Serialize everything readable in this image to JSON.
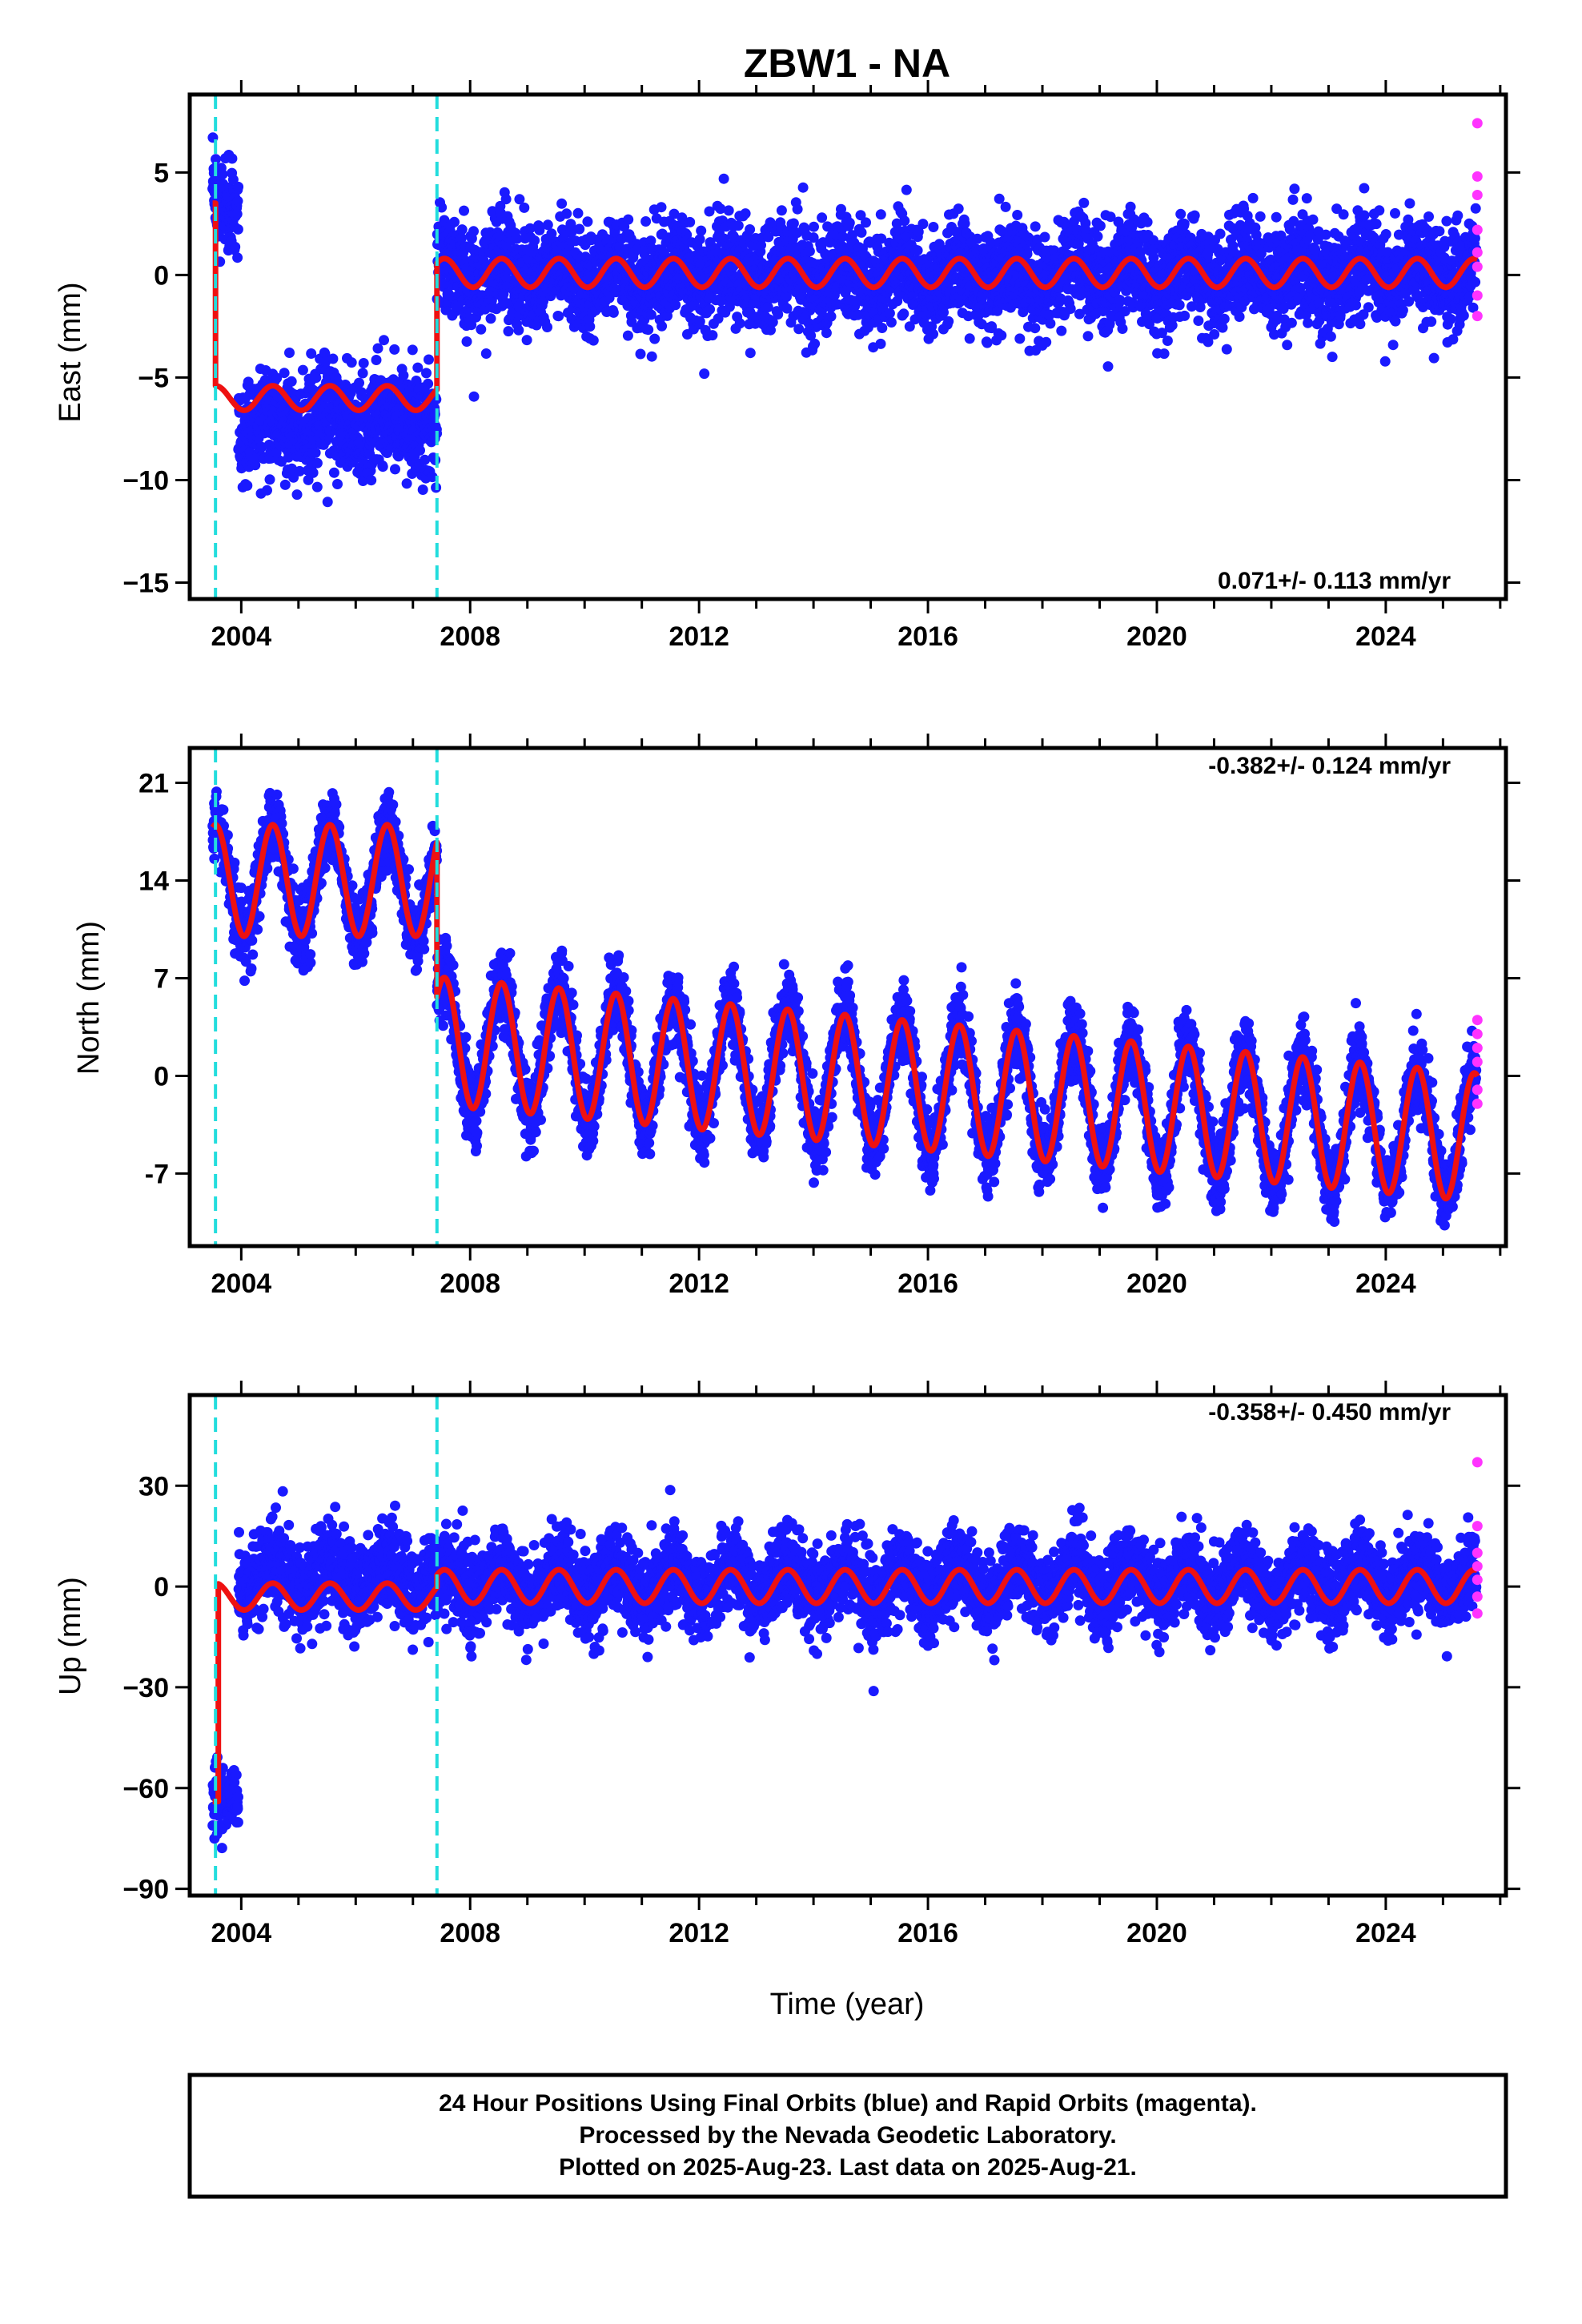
{
  "title": "ZBW1 - NA",
  "colors": {
    "final": "#1a1aff",
    "rapid": "#ff33ff",
    "model": "#ee1111",
    "steps": "#22dddd",
    "frame": "#000000"
  },
  "chart_data": [
    {
      "type": "scatter",
      "component": "east",
      "ylabel": "East (mm)",
      "xlabel": "",
      "ylim": [
        -15.8,
        8.8
      ],
      "yticks": [
        5,
        0,
        -5,
        -10,
        -15
      ],
      "ytick_labels": [
        "5",
        "0",
        "−5",
        "−10",
        "−15"
      ],
      "xlim": [
        2003.1,
        2026.1
      ],
      "xticks": [
        2004,
        2008,
        2012,
        2016,
        2020,
        2024
      ],
      "xtick_labels": [
        "2004",
        "2008",
        "2012",
        "2016",
        "2020",
        "2024"
      ],
      "rate_text": "0.071+/- 0.113 mm/yr",
      "series": [
        {
          "role": "final-orbits",
          "segments": [
            {
              "start": 2003.5,
              "end": 2003.95,
              "level": 3.2,
              "amp": 0.4,
              "noise": 1.1
            },
            {
              "start": 2003.95,
              "end": 2007.42,
              "level": -7.2,
              "amp": 0.5,
              "noise": 1.3
            },
            {
              "start": 2007.42,
              "end": 2025.58,
              "level": 0.0,
              "amp": 0.6,
              "noise": 1.2
            }
          ]
        },
        {
          "role": "rapid-orbits",
          "x": [
            2025.6,
            2025.6,
            2025.6,
            2025.6,
            2025.6,
            2025.6,
            2025.6,
            2025.6
          ],
          "y": [
            7.4,
            4.8,
            3.9,
            2.2,
            1.1,
            0.4,
            -1.0,
            -2.0
          ]
        }
      ],
      "model": {
        "segments": [
          {
            "start": 2003.5,
            "end": 2003.55,
            "level": 3.5,
            "amp": 0.0
          },
          {
            "start": 2003.55,
            "end": 2007.42,
            "level": -6.0,
            "amp": 0.6
          },
          {
            "start": 2007.42,
            "end": 2025.6,
            "level": 0.1,
            "amp": 0.7
          }
        ]
      },
      "steps": [
        2003.55,
        2007.42
      ]
    },
    {
      "type": "scatter",
      "component": "north",
      "ylabel": "North (mm)",
      "xlabel": "",
      "ylim": [
        -12.2,
        23.5
      ],
      "yticks": [
        21,
        14,
        7,
        0,
        -7
      ],
      "ytick_labels": [
        "21",
        "14",
        "7",
        "0",
        "-7"
      ],
      "xlim": [
        2003.1,
        2026.1
      ],
      "xticks": [
        2004,
        2008,
        2012,
        2016,
        2020,
        2024
      ],
      "xtick_labels": [
        "2004",
        "2008",
        "2012",
        "2016",
        "2020",
        "2024"
      ],
      "rate_text": "-0.382+/- 0.124 mm/yr",
      "series": [
        {
          "role": "final-orbits",
          "segments": [
            {
              "start": 2003.5,
              "end": 2007.42,
              "level": 14.0,
              "amp": 4.0,
              "noise": 1.3
            },
            {
              "start": 2007.42,
              "end": 2025.58,
              "level": 2.5,
              "amp": 4.6,
              "noise": 1.3,
              "trend": -0.38
            }
          ]
        },
        {
          "role": "rapid-orbits",
          "x": [
            2025.6,
            2025.6,
            2025.6,
            2025.6,
            2025.6,
            2025.6
          ],
          "y": [
            4.0,
            3.0,
            2.0,
            1.0,
            -1.0,
            -2.0
          ]
        }
      ],
      "model": {
        "segments": [
          {
            "start": 2003.5,
            "end": 2007.42,
            "level": 14.0,
            "amp": 4.0
          },
          {
            "start": 2007.42,
            "end": 2025.6,
            "level": 2.5,
            "amp": 4.6,
            "trend": -0.38
          }
        ]
      },
      "steps": [
        2003.55,
        2007.42
      ]
    },
    {
      "type": "scatter",
      "component": "up",
      "ylabel": "Up (mm)",
      "xlabel": "Time (year)",
      "ylim": [
        -92,
        57
      ],
      "yticks": [
        30,
        0,
        -30,
        -60,
        -90
      ],
      "ytick_labels": [
        "30",
        "0",
        "−30",
        "−60",
        "−90"
      ],
      "xlim": [
        2003.1,
        2026.1
      ],
      "xticks": [
        2004,
        2008,
        2012,
        2016,
        2020,
        2024
      ],
      "xtick_labels": [
        "2004",
        "2008",
        "2012",
        "2016",
        "2020",
        "2024"
      ],
      "rate_text": "-0.358+/- 0.450 mm/yr",
      "series": [
        {
          "role": "final-orbits",
          "segments": [
            {
              "start": 2003.5,
              "end": 2003.95,
              "level": -63,
              "amp": 0,
              "noise": 4.5
            },
            {
              "start": 2003.95,
              "end": 2007.42,
              "level": 3,
              "amp": 5,
              "noise": 6.5
            },
            {
              "start": 2007.42,
              "end": 2025.58,
              "level": 1,
              "amp": 5,
              "noise": 6.0
            }
          ]
        },
        {
          "role": "rapid-orbits",
          "x": [
            2025.6,
            2025.6,
            2025.6,
            2025.6,
            2025.6,
            2025.6,
            2025.6
          ],
          "y": [
            37,
            18,
            10,
            6,
            2,
            -3,
            -8
          ]
        }
      ],
      "model": {
        "segments": [
          {
            "start": 2003.5,
            "end": 2003.6,
            "level": -64,
            "amp": 0
          },
          {
            "start": 2003.6,
            "end": 2007.42,
            "level": -3,
            "amp": 4
          },
          {
            "start": 2007.42,
            "end": 2025.6,
            "level": 0,
            "amp": 5
          }
        ]
      },
      "steps": [
        2003.55,
        2007.42
      ]
    }
  ],
  "footer": {
    "line1": "24 Hour Positions Using Final Orbits (blue) and Rapid Orbits (magenta).",
    "line2": "Processed by the Nevada Geodetic Laboratory.",
    "line3": "Plotted on 2025-Aug-23. Last data on 2025-Aug-21."
  }
}
